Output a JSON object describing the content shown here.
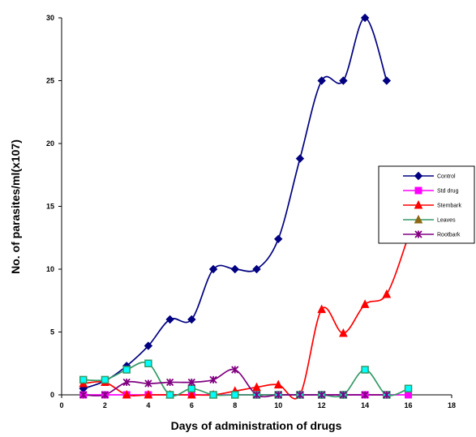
{
  "chart_data": {
    "type": "line",
    "title": "",
    "xlabel": "Days of administration of drugs",
    "ylabel": "No. of parasites/ml(x107)",
    "xlim": [
      0,
      18
    ],
    "ylim": [
      0,
      30
    ],
    "xticks": [
      0,
      2,
      4,
      6,
      8,
      10,
      12,
      14,
      16,
      18
    ],
    "yticks": [
      0,
      5,
      10,
      15,
      20,
      25,
      30
    ],
    "grid": false,
    "legend_position": "right",
    "series": [
      {
        "name": "Control",
        "color": "#000080",
        "marker": "diamond",
        "x": [
          1,
          2,
          3,
          4,
          5,
          6,
          7,
          8,
          9,
          10,
          11,
          12,
          13,
          14,
          15
        ],
        "y": [
          0.5,
          1.1,
          2.3,
          3.9,
          6.0,
          6.0,
          10.0,
          10.0,
          10.0,
          12.4,
          18.8,
          25.0,
          25.0,
          30.0,
          25.0
        ]
      },
      {
        "name": "Std drug",
        "color": "#FF00FF",
        "marker": "square",
        "x": [
          1,
          2,
          3,
          4,
          5,
          6,
          7,
          8,
          9,
          10,
          11,
          12,
          13,
          14,
          15,
          16
        ],
        "y": [
          0,
          0,
          0,
          0,
          0,
          0,
          0,
          0,
          0,
          0,
          0,
          0,
          0,
          0,
          0,
          0
        ]
      },
      {
        "name": "Stembark",
        "color": "#FF0000",
        "marker": "triangle",
        "x": [
          1,
          2,
          3,
          4,
          5,
          6,
          7,
          8,
          9,
          10,
          11,
          12,
          13,
          14,
          15,
          16
        ],
        "y": [
          0.9,
          1.0,
          0,
          0,
          0,
          0,
          0,
          0.3,
          0.6,
          0.8,
          0,
          6.8,
          4.9,
          7.2,
          8.0,
          12.6
        ]
      },
      {
        "name": "Leaves",
        "color": "#339966",
        "marker": "square-cyan",
        "x": [
          1,
          2,
          3,
          4,
          5,
          6,
          7,
          8,
          9,
          10,
          11,
          12,
          13,
          14,
          15,
          16
        ],
        "y": [
          1.2,
          1.2,
          2.0,
          2.5,
          0,
          0.5,
          0,
          0,
          0,
          0,
          0,
          0,
          0,
          2.0,
          0,
          0.5
        ]
      },
      {
        "name": "Rootbark",
        "color": "#800080",
        "marker": "star",
        "x": [
          1,
          2,
          3,
          4,
          5,
          6,
          7,
          8,
          9,
          10,
          11,
          12,
          13,
          14,
          15
        ],
        "y": [
          0,
          0,
          1.0,
          0.9,
          1.0,
          1.0,
          1.2,
          2.0,
          0,
          0,
          0,
          0,
          0,
          0,
          0
        ]
      }
    ]
  }
}
